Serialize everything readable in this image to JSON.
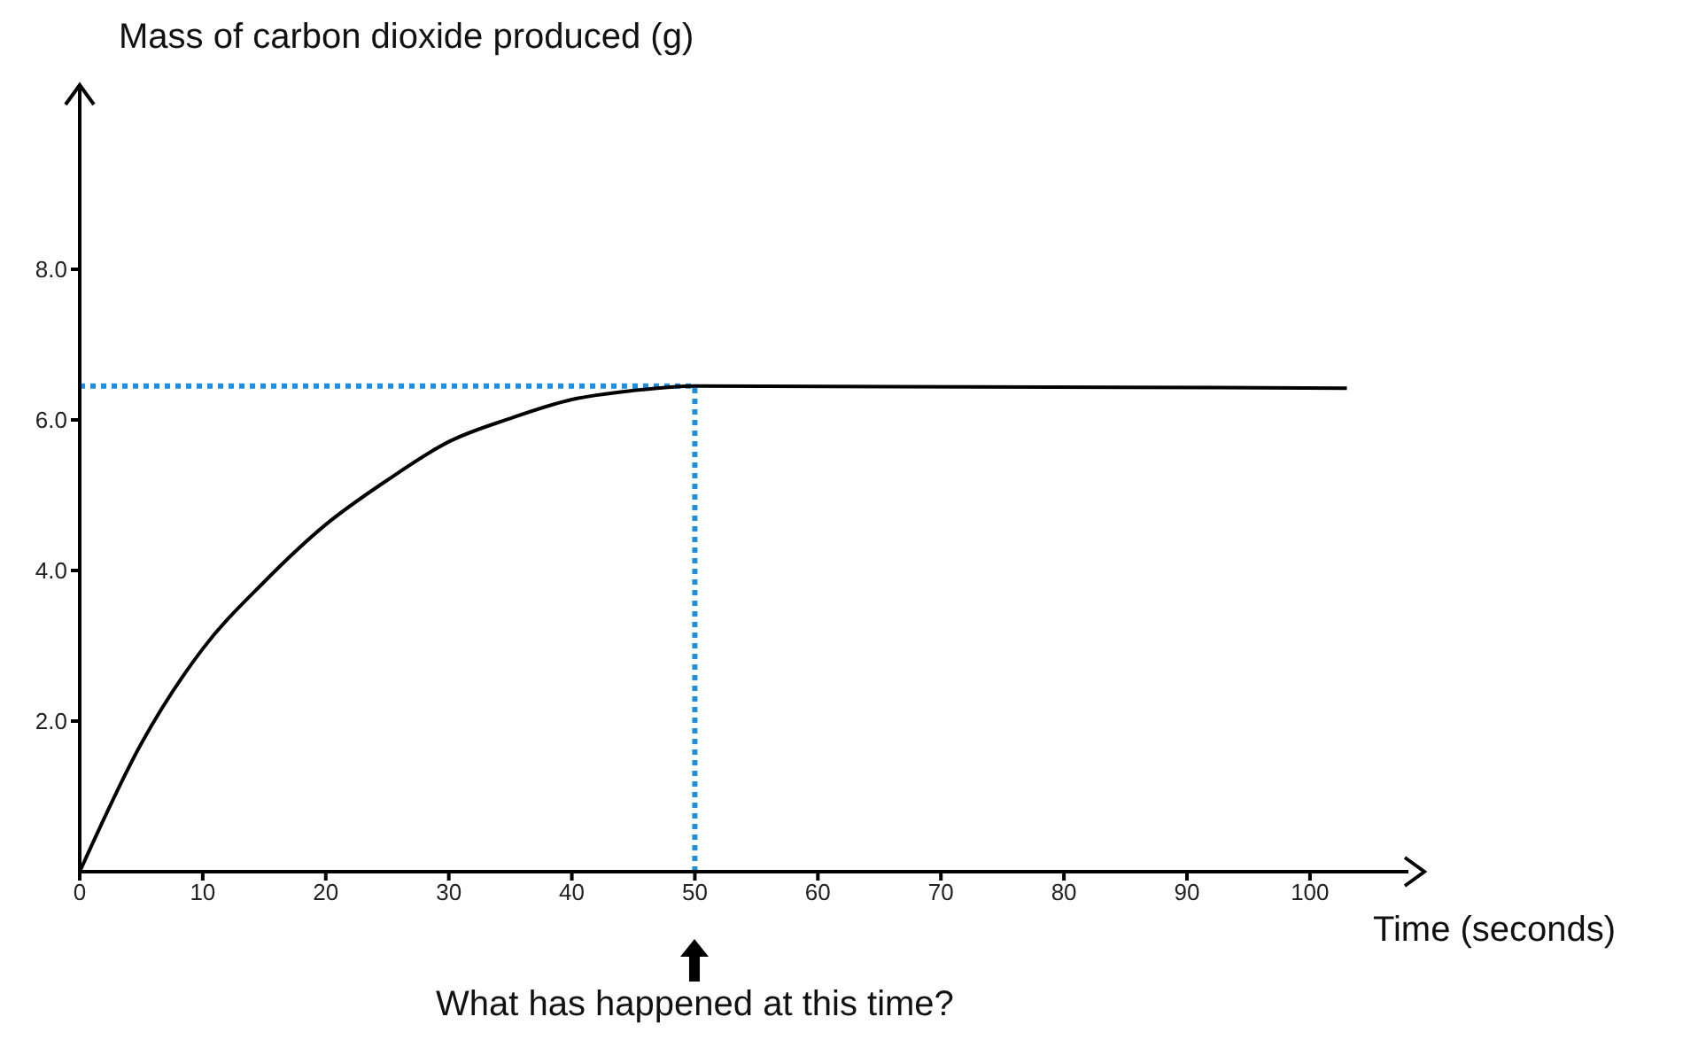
{
  "chart_data": {
    "type": "line",
    "xlabel": "Time (seconds)",
    "ylabel": "Mass of carbon dioxide produced (g)",
    "annotations": [
      "What has happened at this time?"
    ],
    "x": [
      0,
      5,
      10,
      15,
      20,
      25,
      30,
      35,
      40,
      45,
      50,
      103
    ],
    "series": [
      {
        "color": "#000000",
        "values": [
          0,
          1.7,
          2.96,
          3.85,
          4.61,
          5.2,
          5.71,
          6.02,
          6.27,
          6.39,
          6.45,
          6.42
        ]
      }
    ],
    "xlim": [
      0,
      108
    ],
    "xticks": [
      0,
      10,
      20,
      30,
      40,
      50,
      60,
      70,
      80,
      90,
      100
    ],
    "ylim": [
      0,
      10.4
    ],
    "yticks": [
      {
        "value": 2,
        "label": "2.0"
      },
      {
        "value": 4,
        "label": "4.0"
      },
      {
        "value": 6,
        "label": "6.0"
      },
      {
        "value": 8,
        "label": "8.0"
      }
    ],
    "ref_lines": [
      {
        "axis": "x",
        "value": 50,
        "color": "#1e8fe0",
        "line_style": "dotted"
      },
      {
        "axis": "y",
        "value": 6.45,
        "color": "#1e8fe0",
        "line_style": "dotted"
      }
    ],
    "grid": false,
    "legend": false
  }
}
